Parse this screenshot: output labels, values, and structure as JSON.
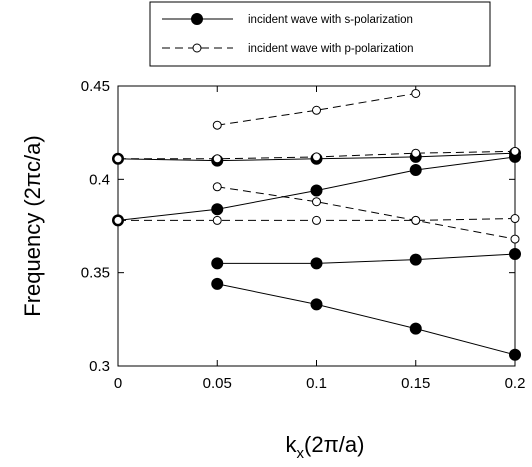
{
  "chart_data": {
    "type": "line",
    "xlabel": "kₓ(2π/a)",
    "xlabel_main": "k",
    "xlabel_sub": "x",
    "xlabel_rest": "(2π/a)",
    "ylabel": "Frequency (2πc/a)",
    "xlim": [
      0,
      0.2
    ],
    "ylim": [
      0.3,
      0.45
    ],
    "xticks": [
      0,
      0.05,
      0.1,
      0.15,
      0.2
    ],
    "xtick_labels": [
      "0",
      "0.05",
      "0.1",
      "0.15",
      "0.2"
    ],
    "yticks": [
      0.3,
      0.35,
      0.4,
      0.45
    ],
    "ytick_labels": [
      "0.3",
      "0.35",
      "0.4",
      "0.45"
    ],
    "grid": false,
    "legend_position": "top, above plot",
    "series": [
      {
        "name": "incident wave with s-polarization",
        "line_style": "solid",
        "marker": "filled-circle",
        "color": "#000000",
        "curves": [
          {
            "x": [
              0,
              0.05,
              0.1,
              0.15,
              0.2
            ],
            "y": [
              0.411,
              0.41,
              0.411,
              0.412,
              0.414
            ]
          },
          {
            "x": [
              0,
              0.05,
              0.1,
              0.15,
              0.2
            ],
            "y": [
              0.378,
              0.384,
              0.394,
              0.405,
              0.412
            ]
          },
          {
            "x": [
              0.05,
              0.1,
              0.15,
              0.2
            ],
            "y": [
              0.355,
              0.355,
              0.357,
              0.36
            ]
          },
          {
            "x": [
              0.05,
              0.1,
              0.15,
              0.2
            ],
            "y": [
              0.344,
              0.333,
              0.32,
              0.306
            ]
          }
        ]
      },
      {
        "name": "incident wave with p-polarization",
        "line_style": "dashed",
        "marker": "open-circle",
        "color": "#000000",
        "curves": [
          {
            "x": [
              0.05,
              0.1,
              0.15
            ],
            "y": [
              0.429,
              0.437,
              0.446
            ]
          },
          {
            "x": [
              0,
              0.05,
              0.1,
              0.15,
              0.2
            ],
            "y": [
              0.411,
              0.411,
              0.412,
              0.414,
              0.415
            ]
          },
          {
            "x": [
              0.05,
              0.1,
              0.15,
              0.2
            ],
            "y": [
              0.396,
              0.388,
              0.378,
              0.368
            ]
          },
          {
            "x": [
              0,
              0.05,
              0.1,
              0.15,
              0.2
            ],
            "y": [
              0.378,
              0.378,
              0.378,
              0.378,
              0.379
            ]
          }
        ]
      }
    ]
  }
}
